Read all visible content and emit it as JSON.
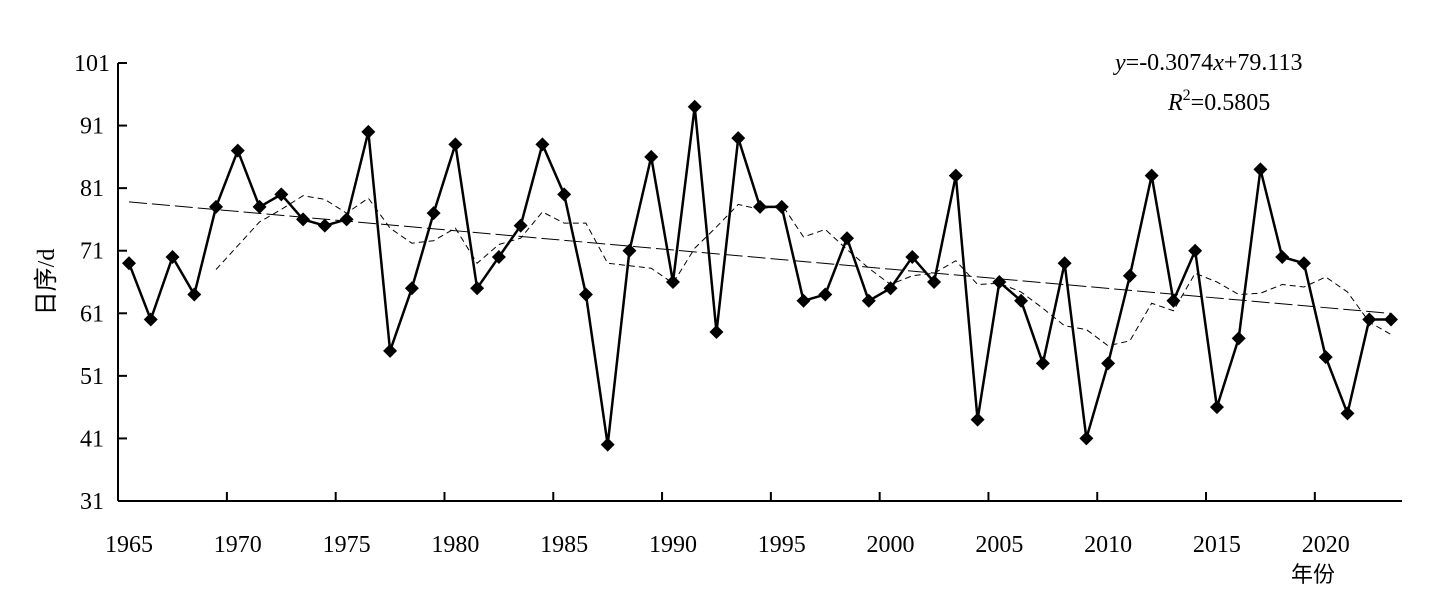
{
  "chart_data": {
    "type": "line",
    "ylabel": "日序/d",
    "xlabel": "年份",
    "xlim": [
      1965,
      2023
    ],
    "ylim": [
      31,
      101
    ],
    "yticks": [
      31,
      41,
      51,
      61,
      71,
      81,
      91,
      101
    ],
    "xticks": [
      1965,
      1970,
      1975,
      1980,
      1985,
      1990,
      1995,
      2000,
      2005,
      2010,
      2015,
      2020
    ],
    "ytick_labels": [
      "31",
      "41",
      "51",
      "61",
      "71",
      "81",
      "91",
      "101"
    ],
    "xtick_labels": [
      "1965",
      "1970",
      "1975",
      "1980",
      "1985",
      "1990",
      "1995",
      "2000",
      "2005",
      "2010",
      "2015",
      "2020"
    ],
    "equation": {
      "y_var": "y",
      "y_rest": "=-0.3074",
      "x_var": "x",
      "x_rest": "+79.113",
      "r_var": "R",
      "r_sup": "2",
      "r_rest": "=0.5805"
    },
    "x": [
      1965,
      1966,
      1967,
      1968,
      1969,
      1970,
      1971,
      1972,
      1973,
      1974,
      1975,
      1976,
      1977,
      1978,
      1979,
      1980,
      1981,
      1982,
      1983,
      1984,
      1985,
      1986,
      1987,
      1988,
      1989,
      1990,
      1991,
      1992,
      1993,
      1994,
      1995,
      1996,
      1997,
      1998,
      1999,
      2000,
      2001,
      2002,
      2003,
      2004,
      2005,
      2006,
      2007,
      2008,
      2009,
      2010,
      2011,
      2012,
      2013,
      2014,
      2015,
      2016,
      2017,
      2018,
      2019,
      2020,
      2021,
      2022,
      2023
    ],
    "series": [
      {
        "values": [
          69,
          60,
          70,
          64,
          78,
          87,
          78,
          80,
          76,
          75,
          76,
          90,
          55,
          65,
          77,
          88,
          65,
          70,
          75,
          88,
          80,
          64,
          40,
          71,
          86,
          66,
          94,
          58,
          89,
          78,
          78,
          63,
          64,
          73,
          63,
          65,
          70,
          66,
          83,
          44,
          66,
          63,
          53,
          69,
          41,
          53,
          67,
          83,
          63,
          71,
          46,
          57,
          84,
          70,
          69,
          54,
          45,
          60,
          60
        ]
      }
    ],
    "moving_average": {
      "x": [
        1969,
        1970,
        1971,
        1972,
        1973,
        1974,
        1975,
        1976,
        1977,
        1978,
        1979,
        1980,
        1981,
        1982,
        1983,
        1984,
        1985,
        1986,
        1987,
        1988,
        1989,
        1990,
        1991,
        1992,
        1993,
        1994,
        1995,
        1996,
        1997,
        1998,
        1999,
        2000,
        2001,
        2002,
        2003,
        2004,
        2005,
        2006,
        2007,
        2008,
        2009,
        2010,
        2011,
        2012,
        2013,
        2014,
        2015,
        2016,
        2017,
        2018,
        2019,
        2020,
        2021,
        2022,
        2023
      ],
      "values": [
        68,
        71.8,
        75.6,
        77.6,
        79.8,
        79.2,
        77,
        79.4,
        74.6,
        72.2,
        72.6,
        74.6,
        69,
        72,
        73,
        77.2,
        75.4,
        75.4,
        69,
        68.6,
        68.2,
        65.8,
        71.4,
        74.8,
        78.4,
        77.6,
        78.4,
        73.2,
        74.4,
        71.2,
        68.2,
        65.6,
        67,
        67.4,
        69.4,
        65.6,
        65.8,
        64.4,
        61.8,
        59,
        58.4,
        55.8,
        56.6,
        62.6,
        61.4,
        67.4,
        66,
        64,
        64.2,
        65.6,
        65.2,
        66.8,
        64.4,
        59.6,
        57.6
      ]
    },
    "trend": {
      "slope": -0.3074,
      "intercept": 79.113,
      "x_origin": 1964
    }
  }
}
